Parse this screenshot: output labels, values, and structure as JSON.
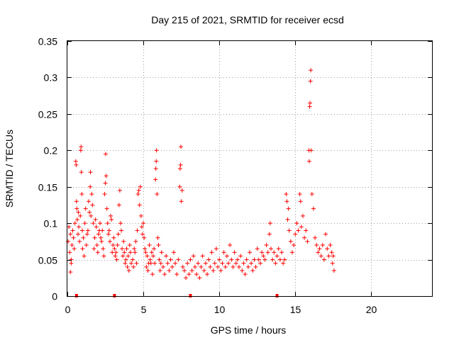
{
  "chart_data": {
    "type": "scatter",
    "title": "Day 215 of 2021, SRMTID for receiver ecsd",
    "xlabel": "GPS time / hours",
    "ylabel": "SRMTID / TECUs",
    "xlim": [
      0,
      24
    ],
    "ylim": [
      0,
      0.35
    ],
    "x_ticks": [
      "0",
      "5",
      "10",
      "15",
      "20"
    ],
    "x_tick_values": [
      0,
      5,
      10,
      15,
      20
    ],
    "y_ticks": [
      "0",
      "0.05",
      "0.1",
      "0.15",
      "0.2",
      "0.25",
      "0.3",
      "0.35"
    ],
    "y_tick_values": [
      0,
      0.05,
      0.1,
      0.15,
      0.2,
      0.25,
      0.3,
      0.35
    ],
    "grid": true,
    "marker": "+",
    "marker_color": "#ff0000",
    "data_gaps_at_zero": [
      0.6,
      3.1,
      8.1,
      13.8
    ],
    "series": [
      {
        "name": "SRMTID",
        "points": [
          [
            0.05,
            0.075
          ],
          [
            0.1,
            0.095
          ],
          [
            0.15,
            0.06
          ],
          [
            0.2,
            0.085
          ],
          [
            0.25,
            0.045
          ],
          [
            0.3,
            0.07
          ],
          [
            0.35,
            0.09
          ],
          [
            0.4,
            0.08
          ],
          [
            0.45,
            0.065
          ],
          [
            0.5,
            0.1
          ],
          [
            0.2,
            0.033
          ],
          [
            0.25,
            0.05
          ],
          [
            0.55,
            0.185
          ],
          [
            0.58,
            0.18
          ],
          [
            0.6,
            0.13
          ],
          [
            0.62,
            0.12
          ],
          [
            0.65,
            0.105
          ],
          [
            0.7,
            0.085
          ],
          [
            0.72,
            0.115
          ],
          [
            0.75,
            0.095
          ],
          [
            0.8,
            0.075
          ],
          [
            0.85,
            0.11
          ],
          [
            0.88,
            0.2
          ],
          [
            0.9,
            0.205
          ],
          [
            0.92,
            0.17
          ],
          [
            0.95,
            0.14
          ],
          [
            0.98,
            0.09
          ],
          [
            1.0,
            0.065
          ],
          [
            1.05,
            0.08
          ],
          [
            1.1,
            0.055
          ],
          [
            1.15,
            0.1
          ],
          [
            1.2,
            0.12
          ],
          [
            1.25,
            0.07
          ],
          [
            1.3,
            0.085
          ],
          [
            1.35,
            0.09
          ],
          [
            1.4,
            0.13
          ],
          [
            1.45,
            0.115
          ],
          [
            1.5,
            0.15
          ],
          [
            1.52,
            0.17
          ],
          [
            1.55,
            0.11
          ],
          [
            1.6,
            0.14
          ],
          [
            1.65,
            0.125
          ],
          [
            1.7,
            0.1
          ],
          [
            1.75,
            0.065
          ],
          [
            1.8,
            0.08
          ],
          [
            1.85,
            0.105
          ],
          [
            1.9,
            0.095
          ],
          [
            1.95,
            0.07
          ],
          [
            2.0,
            0.06
          ],
          [
            2.05,
            0.085
          ],
          [
            2.1,
            0.09
          ],
          [
            2.15,
            0.1
          ],
          [
            2.2,
            0.08
          ],
          [
            2.25,
            0.075
          ],
          [
            2.3,
            0.09
          ],
          [
            2.35,
            0.065
          ],
          [
            2.4,
            0.055
          ],
          [
            2.45,
            0.14
          ],
          [
            2.5,
            0.155
          ],
          [
            2.52,
            0.195
          ],
          [
            2.55,
            0.165
          ],
          [
            2.6,
            0.12
          ],
          [
            2.65,
            0.1
          ],
          [
            2.7,
            0.085
          ],
          [
            2.75,
            0.09
          ],
          [
            2.8,
            0.075
          ],
          [
            2.85,
            0.11
          ],
          [
            2.9,
            0.105
          ],
          [
            2.95,
            0.06
          ],
          [
            3.0,
            0.07
          ],
          [
            3.05,
            0.08
          ],
          [
            3.1,
            0.065
          ],
          [
            3.15,
            0.055
          ],
          [
            3.2,
            0.06
          ],
          [
            3.25,
            0.05
          ],
          [
            3.3,
            0.07
          ],
          [
            3.35,
            0.085
          ],
          [
            3.4,
            0.125
          ],
          [
            3.45,
            0.145
          ],
          [
            3.5,
            0.1
          ],
          [
            3.55,
            0.09
          ],
          [
            3.6,
            0.065
          ],
          [
            3.65,
            0.055
          ],
          [
            3.7,
            0.075
          ],
          [
            3.75,
            0.06
          ],
          [
            3.8,
            0.045
          ],
          [
            3.85,
            0.05
          ],
          [
            3.9,
            0.065
          ],
          [
            3.95,
            0.04
          ],
          [
            4.0,
            0.055
          ],
          [
            4.05,
            0.035
          ],
          [
            4.1,
            0.07
          ],
          [
            4.15,
            0.06
          ],
          [
            4.2,
            0.045
          ],
          [
            4.3,
            0.05
          ],
          [
            4.35,
            0.04
          ],
          [
            4.4,
            0.065
          ],
          [
            4.45,
            0.06
          ],
          [
            4.5,
            0.075
          ],
          [
            4.55,
            0.045
          ],
          [
            4.6,
            0.09
          ],
          [
            4.65,
            0.14
          ],
          [
            4.7,
            0.145
          ],
          [
            4.75,
            0.125
          ],
          [
            4.8,
            0.15
          ],
          [
            4.85,
            0.11
          ],
          [
            4.9,
            0.095
          ],
          [
            4.95,
            0.085
          ],
          [
            5.0,
            0.1
          ],
          [
            5.05,
            0.08
          ],
          [
            5.1,
            0.065
          ],
          [
            5.15,
            0.06
          ],
          [
            5.2,
            0.04
          ],
          [
            5.25,
            0.055
          ],
          [
            5.3,
            0.035
          ],
          [
            5.35,
            0.045
          ],
          [
            5.4,
            0.07
          ],
          [
            5.45,
            0.05
          ],
          [
            5.5,
            0.045
          ],
          [
            5.55,
            0.06
          ],
          [
            5.6,
            0.03
          ],
          [
            5.65,
            0.055
          ],
          [
            5.7,
            0.065
          ],
          [
            5.75,
            0.045
          ],
          [
            5.8,
            0.16
          ],
          [
            5.82,
            0.175
          ],
          [
            5.85,
            0.185
          ],
          [
            5.87,
            0.2
          ],
          [
            5.9,
            0.14
          ],
          [
            5.95,
            0.08
          ],
          [
            6.0,
            0.07
          ],
          [
            6.05,
            0.05
          ],
          [
            6.1,
            0.035
          ],
          [
            6.15,
            0.045
          ],
          [
            6.2,
            0.06
          ],
          [
            6.3,
            0.04
          ],
          [
            6.4,
            0.03
          ],
          [
            6.5,
            0.055
          ],
          [
            6.6,
            0.045
          ],
          [
            6.7,
            0.035
          ],
          [
            6.8,
            0.05
          ],
          [
            6.9,
            0.04
          ],
          [
            7.0,
            0.06
          ],
          [
            7.1,
            0.045
          ],
          [
            7.2,
            0.03
          ],
          [
            7.3,
            0.05
          ],
          [
            7.4,
            0.15
          ],
          [
            7.42,
            0.175
          ],
          [
            7.45,
            0.18
          ],
          [
            7.47,
            0.205
          ],
          [
            7.5,
            0.13
          ],
          [
            7.55,
            0.145
          ],
          [
            7.6,
            0.04
          ],
          [
            7.7,
            0.035
          ],
          [
            7.8,
            0.025
          ],
          [
            7.9,
            0.045
          ],
          [
            8.0,
            0.03
          ],
          [
            8.1,
            0.05
          ],
          [
            8.2,
            0.035
          ],
          [
            8.3,
            0.055
          ],
          [
            8.4,
            0.04
          ],
          [
            8.5,
            0.03
          ],
          [
            8.6,
            0.045
          ],
          [
            8.7,
            0.025
          ],
          [
            8.8,
            0.04
          ],
          [
            8.9,
            0.055
          ],
          [
            9.0,
            0.035
          ],
          [
            9.1,
            0.045
          ],
          [
            9.2,
            0.03
          ],
          [
            9.3,
            0.05
          ],
          [
            9.4,
            0.04
          ],
          [
            9.5,
            0.06
          ],
          [
            9.6,
            0.035
          ],
          [
            9.7,
            0.045
          ],
          [
            9.8,
            0.065
          ],
          [
            9.9,
            0.04
          ],
          [
            10.0,
            0.05
          ],
          [
            10.1,
            0.035
          ],
          [
            10.2,
            0.045
          ],
          [
            10.3,
            0.06
          ],
          [
            10.4,
            0.04
          ],
          [
            10.5,
            0.055
          ],
          [
            10.6,
            0.045
          ],
          [
            10.7,
            0.07
          ],
          [
            10.8,
            0.05
          ],
          [
            10.9,
            0.04
          ],
          [
            11.0,
            0.06
          ],
          [
            11.1,
            0.045
          ],
          [
            11.2,
            0.05
          ],
          [
            11.3,
            0.04
          ],
          [
            11.4,
            0.055
          ],
          [
            11.5,
            0.035
          ],
          [
            11.6,
            0.045
          ],
          [
            11.7,
            0.03
          ],
          [
            11.8,
            0.05
          ],
          [
            11.9,
            0.04
          ],
          [
            12.0,
            0.06
          ],
          [
            12.1,
            0.045
          ],
          [
            12.2,
            0.035
          ],
          [
            12.3,
            0.05
          ],
          [
            12.4,
            0.04
          ],
          [
            12.5,
            0.065
          ],
          [
            12.6,
            0.05
          ],
          [
            12.7,
            0.045
          ],
          [
            12.8,
            0.06
          ],
          [
            12.9,
            0.055
          ],
          [
            13.0,
            0.05
          ],
          [
            13.1,
            0.07
          ],
          [
            13.2,
            0.06
          ],
          [
            13.3,
            0.085
          ],
          [
            13.35,
            0.1
          ],
          [
            13.4,
            0.065
          ],
          [
            13.5,
            0.05
          ],
          [
            13.6,
            0.06
          ],
          [
            13.7,
            0.045
          ],
          [
            13.8,
            0.055
          ],
          [
            13.9,
            0.065
          ],
          [
            14.0,
            0.05
          ],
          [
            14.1,
            0.06
          ],
          [
            14.2,
            0.045
          ],
          [
            14.3,
            0.05
          ],
          [
            14.4,
            0.14
          ],
          [
            14.45,
            0.13
          ],
          [
            14.5,
            0.105
          ],
          [
            14.55,
            0.12
          ],
          [
            14.6,
            0.09
          ],
          [
            14.7,
            0.075
          ],
          [
            14.8,
            0.06
          ],
          [
            14.9,
            0.07
          ],
          [
            15.0,
            0.085
          ],
          [
            15.1,
            0.1
          ],
          [
            15.2,
            0.09
          ],
          [
            15.3,
            0.14
          ],
          [
            15.35,
            0.13
          ],
          [
            15.4,
            0.095
          ],
          [
            15.5,
            0.11
          ],
          [
            15.6,
            0.08
          ],
          [
            15.7,
            0.09
          ],
          [
            15.8,
            0.075
          ],
          [
            15.9,
            0.2
          ],
          [
            15.92,
            0.185
          ],
          [
            15.95,
            0.26
          ],
          [
            15.97,
            0.265
          ],
          [
            16.0,
            0.295
          ],
          [
            16.02,
            0.31
          ],
          [
            16.05,
            0.2
          ],
          [
            16.1,
            0.14
          ],
          [
            16.2,
            0.12
          ],
          [
            16.3,
            0.08
          ],
          [
            16.4,
            0.07
          ],
          [
            16.5,
            0.06
          ],
          [
            16.6,
            0.065
          ],
          [
            16.7,
            0.055
          ],
          [
            16.8,
            0.07
          ],
          [
            16.9,
            0.05
          ],
          [
            17.0,
            0.085
          ],
          [
            17.1,
            0.065
          ],
          [
            17.2,
            0.055
          ],
          [
            17.3,
            0.07
          ],
          [
            17.4,
            0.06
          ],
          [
            17.45,
            0.045
          ],
          [
            17.5,
            0.055
          ],
          [
            17.55,
            0.035
          ]
        ]
      }
    ]
  }
}
